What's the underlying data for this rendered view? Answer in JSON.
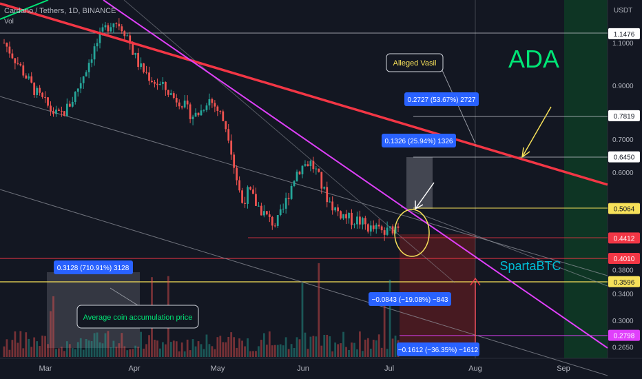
{
  "header": {
    "symbol_line": "Cardano / Tethers, 1D, BINANCE",
    "vol_label": "Vol"
  },
  "chart_data": {
    "type": "candlestick",
    "currency": "USDT",
    "price_ticks": [
      "1.1000",
      "0.9000",
      "0.7000",
      "0.6000",
      "0.3800",
      "0.3400",
      "0.3000",
      "0.2650"
    ],
    "month_labels": [
      "Mar",
      "Apr",
      "May",
      "Jun",
      "Jul",
      "Aug",
      "Sep"
    ],
    "price_labels": [
      {
        "text": "1.1476",
        "style": "white"
      },
      {
        "text": "0.7819",
        "style": "white"
      },
      {
        "text": "0.6450",
        "style": "white"
      },
      {
        "text": "0.5064",
        "style": "yellow"
      },
      {
        "text": "0.4412",
        "style": "red"
      },
      {
        "text": "0.4010",
        "style": "red"
      },
      {
        "text": "0.3596",
        "style": "yellow"
      },
      {
        "text": "0.2798",
        "style": "magenta"
      }
    ],
    "measure_labels": [
      {
        "text": "0.2727 (53.67%) 2727"
      },
      {
        "text": "0.1326 (25.94%) 1326"
      },
      {
        "text": "0.3128 (710.91%) 3128"
      },
      {
        "text": "−0.0843 (−19.08%) −843"
      },
      {
        "text": "−0.1612 (−36.35%) −1612"
      }
    ],
    "annotations": {
      "alleged": "Alleged Vasil",
      "accum": "Average coin accumulation price",
      "ada": "ADA",
      "author": "SpartaBTC"
    },
    "candles_approx": [
      1.1,
      1.05,
      1.0,
      0.95,
      0.9,
      0.86,
      0.83,
      0.8,
      0.78,
      0.8,
      0.84,
      0.9,
      0.97,
      1.05,
      1.12,
      1.18,
      1.22,
      1.2,
      1.15,
      1.05,
      0.98,
      0.95,
      0.92,
      0.9,
      0.88,
      0.85,
      0.84,
      0.8,
      0.78,
      0.8,
      0.85,
      0.82,
      0.78,
      0.72,
      0.6,
      0.52,
      0.55,
      0.52,
      0.5,
      0.48,
      0.47,
      0.5,
      0.55,
      0.6,
      0.62,
      0.63,
      0.6,
      0.55,
      0.52,
      0.5,
      0.49,
      0.48,
      0.48,
      0.47,
      0.46,
      0.46,
      0.45,
      0.46,
      0.47
    ],
    "colors": {
      "background": "#131722",
      "up": "#26a69a",
      "down": "#ef5350",
      "trendline": "#f23645",
      "channel": "#e040fb",
      "accent_green": "#00e676",
      "author": "#00bcd4"
    }
  }
}
